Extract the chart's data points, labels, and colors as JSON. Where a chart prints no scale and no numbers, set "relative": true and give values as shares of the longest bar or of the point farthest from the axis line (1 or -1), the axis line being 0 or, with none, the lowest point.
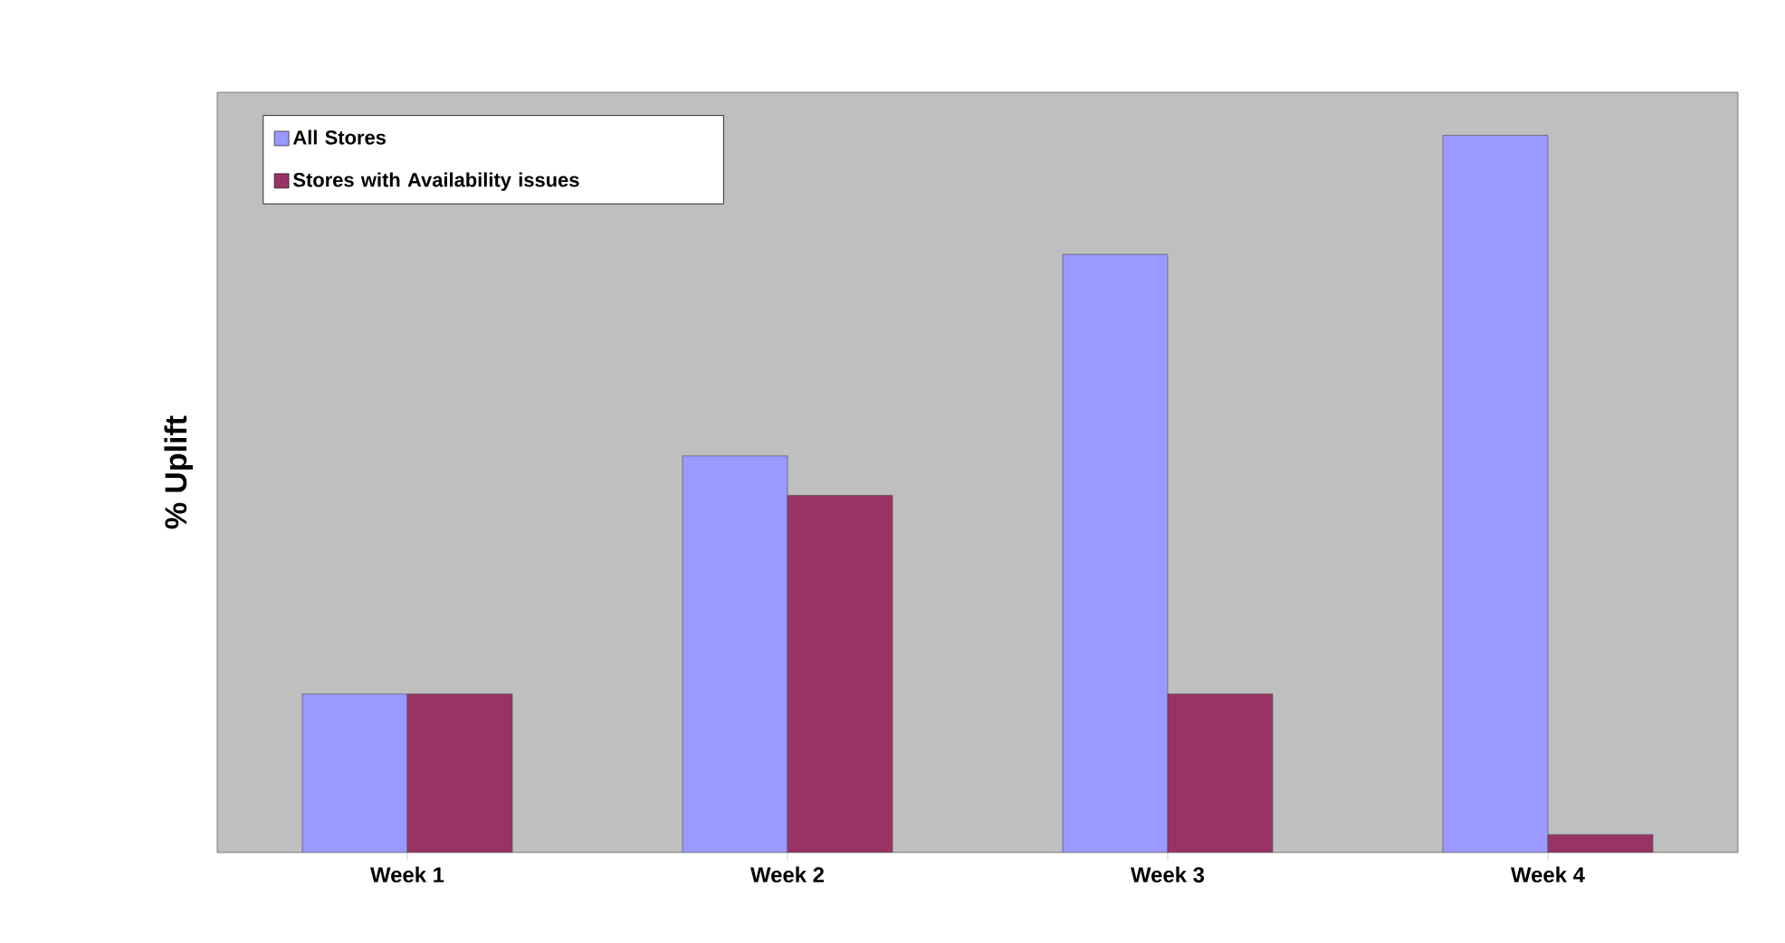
{
  "chart_data": {
    "type": "bar",
    "ylabel": "% Uplift",
    "relative": true,
    "legend": "top left",
    "categories": [
      "Week 1",
      "Week 2",
      "Week 3",
      "Week 4"
    ],
    "series": [
      {
        "name": "All Stores",
        "color": "#9999ff",
        "values": [
          0.221,
          0.553,
          0.834,
          1
        ]
      },
      {
        "name": "Stores with Availability issues",
        "color": "#993366",
        "values": [
          0.221,
          0.498,
          0.221,
          0.025
        ]
      }
    ]
  }
}
